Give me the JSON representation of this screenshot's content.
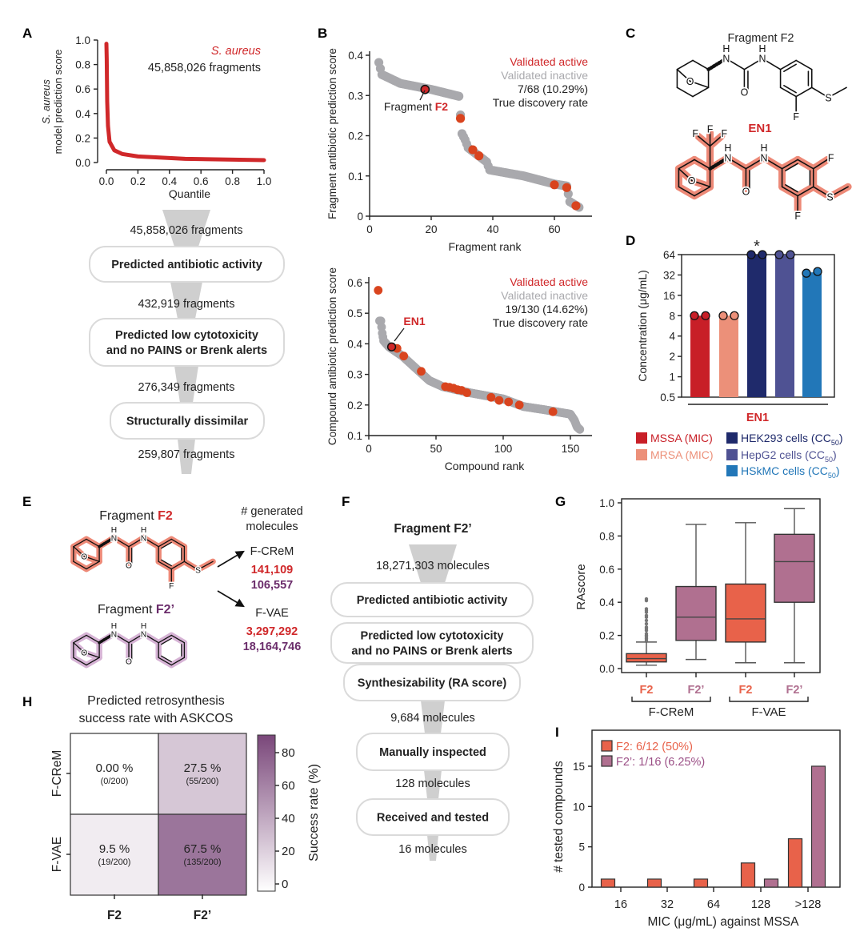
{
  "panel_labels": {
    "A": "A",
    "B": "B",
    "C": "C",
    "D": "D",
    "E": "E",
    "F": "F",
    "G": "G",
    "H": "H",
    "I": "I"
  },
  "panel_a_funnel": {
    "counts": [
      "45,858,026 fragments",
      "432,919 fragments",
      "276,349 fragments",
      "259,807 fragments"
    ],
    "boxes": [
      [
        "Predicted antibiotic activity"
      ],
      [
        "Predicted low cytotoxicity",
        "and no PAINS or Brenk alerts"
      ],
      [
        "Structurally dissimilar"
      ]
    ]
  },
  "panel_c": {
    "title_prefix": "Fragment ",
    "title_highlight": "F2",
    "en1_label": "EN1"
  },
  "panel_e": {
    "f2_prefix": "Fragment ",
    "f2": "F2",
    "f2p": "F2’",
    "header": [
      "# generated",
      "molecules"
    ],
    "methods": [
      {
        "name": "F-CReM",
        "f2_count": "141,109",
        "f2p_count": "106,557"
      },
      {
        "name": "F-VAE",
        "f2_count": "3,297,292",
        "f2p_count": "18,164,746"
      }
    ]
  },
  "panel_f_funnel": {
    "title": "Fragment F2’",
    "counts": [
      "18,271,303 molecules",
      "9,684 molecules",
      "128 molecules",
      "16 molecules"
    ],
    "boxes": [
      [
        "Predicted antibiotic activity"
      ],
      [
        "Predicted low cytotoxicity",
        "and no PAINS or Brenk alerts"
      ],
      [
        "Synthesizability (RA score)"
      ],
      [
        "Manually inspected"
      ],
      [
        "Received and tested"
      ]
    ]
  },
  "molecules": {
    "atoms": {
      "N": "N",
      "H": "H",
      "O": "O",
      "F": "F",
      "S": "S"
    }
  },
  "colors": {
    "red_text": "#d0282a",
    "active": "#d9441e",
    "inactive": "#a9a9ad",
    "f2": "#e8624a",
    "f2p": "#b07090",
    "f2p_text": "#6b2d6b",
    "funnel": "#cfcfcf"
  },
  "chart_data": [
    {
      "id": "A",
      "type": "line",
      "annotation_species": "S. aureus",
      "annotation_count": "45,858,026 fragments",
      "xlabel": "Quantile",
      "ylabel_italic": "S. aureus",
      "ylabel": "model prediction score",
      "xlim": [
        0,
        1
      ],
      "ylim": [
        0,
        1
      ],
      "xtick_labels": [
        "0.0",
        "0.2",
        "0.4",
        "0.6",
        "0.8",
        "1.0"
      ],
      "ytick_labels": [
        "0.0",
        "0.2",
        "0.4",
        "0.6",
        "0.8",
        "1.0"
      ],
      "points": [
        [
          0,
          0.97
        ],
        [
          0.002,
          0.85
        ],
        [
          0.005,
          0.5
        ],
        [
          0.01,
          0.3
        ],
        [
          0.02,
          0.17
        ],
        [
          0.05,
          0.1
        ],
        [
          0.1,
          0.07
        ],
        [
          0.2,
          0.05
        ],
        [
          0.5,
          0.03
        ],
        [
          1,
          0.02
        ]
      ]
    },
    {
      "id": "B-top",
      "type": "scatter",
      "xlabel": "Fragment rank",
      "ylabel": "Fragment antibiotic prediction score",
      "xlim": [
        0,
        72
      ],
      "ylim": [
        0,
        0.4
      ],
      "xtick_labels": [
        "0",
        "20",
        "40",
        "60"
      ],
      "ytick_labels": [
        "0",
        "0.1",
        "0.2",
        "0.3",
        "0.4"
      ],
      "legend": [
        "Validated active",
        "Validated inactive",
        "7/68 (10.29%)",
        "True discovery rate"
      ],
      "inactive_curve": [
        [
          3,
          0.382
        ],
        [
          4,
          0.352
        ],
        [
          10,
          0.33
        ],
        [
          20,
          0.315
        ],
        [
          29,
          0.298
        ],
        [
          30,
          0.205
        ],
        [
          31,
          0.19
        ],
        [
          32,
          0.17
        ],
        [
          38,
          0.135
        ],
        [
          39,
          0.115
        ],
        [
          50,
          0.1
        ],
        [
          60,
          0.08
        ],
        [
          64,
          0.075
        ],
        [
          65,
          0.036
        ],
        [
          68,
          0.022
        ]
      ],
      "active": [
        [
          18,
          0.315
        ],
        [
          29.5,
          0.243
        ],
        [
          33.5,
          0.165
        ],
        [
          35.5,
          0.15
        ],
        [
          60,
          0.078
        ],
        [
          64,
          0.071
        ],
        [
          67,
          0.026
        ]
      ],
      "highlight": {
        "x": 18,
        "y": 0.315,
        "prefix": "Fragment ",
        "label": "F2"
      }
    },
    {
      "id": "B-bottom",
      "type": "scatter",
      "xlabel": "Compound rank",
      "ylabel": "Compound antibiotic prediction score",
      "xlim": [
        0,
        160
      ],
      "ylim": [
        0.1,
        0.6
      ],
      "xtick_labels": [
        "0",
        "50",
        "100",
        "150"
      ],
      "ytick_labels": [
        "0.1",
        "0.2",
        "0.3",
        "0.4",
        "0.5",
        "0.6"
      ],
      "legend": [
        "Validated active",
        "Validated inactive",
        "19/130 (14.62%)",
        "True discovery rate"
      ],
      "inactive_curve": [
        [
          8,
          0.475
        ],
        [
          9,
          0.475
        ],
        [
          10,
          0.435
        ],
        [
          11,
          0.41
        ],
        [
          15,
          0.39
        ],
        [
          25,
          0.36
        ],
        [
          35,
          0.32
        ],
        [
          45,
          0.28
        ],
        [
          55,
          0.26
        ],
        [
          75,
          0.24
        ],
        [
          100,
          0.22
        ],
        [
          115,
          0.195
        ],
        [
          130,
          0.185
        ],
        [
          150,
          0.17
        ],
        [
          153,
          0.15
        ],
        [
          155,
          0.128
        ],
        [
          157,
          0.12
        ]
      ],
      "active": [
        [
          7,
          0.575
        ],
        [
          17,
          0.39
        ],
        [
          21,
          0.385
        ],
        [
          26,
          0.36
        ],
        [
          39,
          0.31
        ],
        [
          57,
          0.26
        ],
        [
          60,
          0.258
        ],
        [
          63,
          0.255
        ],
        [
          66,
          0.25
        ],
        [
          69,
          0.248
        ],
        [
          73,
          0.24
        ],
        [
          91,
          0.225
        ],
        [
          97,
          0.215
        ],
        [
          104,
          0.21
        ],
        [
          112,
          0.2
        ],
        [
          137,
          0.178
        ]
      ],
      "highlight": {
        "x": 17,
        "y": 0.39,
        "prefix": "",
        "label": "EN1"
      }
    },
    {
      "id": "D",
      "type": "bar",
      "yscale": "log2",
      "ylabel": "Concentration (μg/mL)",
      "group_label": "EN1",
      "ytick_labels": [
        "0.5",
        "1",
        "2",
        "4",
        "8",
        "16",
        "32",
        "64"
      ],
      "categories": [
        "MSSA (MIC)",
        "MRSA (MIC)",
        "HEK293 cells (CC50)",
        "HepG2 cells (CC50)",
        "HSkMC cells (CC50)"
      ],
      "values": [
        8,
        8,
        64,
        64,
        35
      ],
      "replicates": [
        [
          8,
          8
        ],
        [
          8,
          8
        ],
        [
          64,
          64
        ],
        [
          64,
          64
        ],
        [
          34,
          36
        ]
      ],
      "significance": [
        "",
        "",
        "*",
        "",
        ""
      ],
      "bar_colors": [
        "#c81f27",
        "#ec9079",
        "#1f2a6b",
        "#4f5293",
        "#2277b8"
      ],
      "legend": [
        {
          "text": "MSSA (MIC)",
          "sub": "",
          "suffix": ""
        },
        {
          "text": "MRSA (MIC)",
          "sub": "",
          "suffix": ""
        },
        {
          "text": "HEK293 cells (CC",
          "sub": "50",
          "suffix": ")"
        },
        {
          "text": "HepG2 cells (CC",
          "sub": "50",
          "suffix": ")"
        },
        {
          "text": "HSkMC cells (CC",
          "sub": "50",
          "suffix": ")"
        }
      ]
    },
    {
      "id": "G",
      "type": "box",
      "ylabel": "RAscore",
      "ylim": [
        0,
        1
      ],
      "ytick_labels": [
        "0.0",
        "0.2",
        "0.4",
        "0.6",
        "0.8",
        "1.0"
      ],
      "groups": [
        "F-CReM",
        "F-VAE"
      ],
      "boxes": [
        {
          "group": "F-CReM",
          "label": "F2",
          "min": 0.02,
          "q1": 0.04,
          "median": 0.06,
          "q3": 0.09,
          "max": 0.16,
          "outliers": [
            0.17,
            0.18,
            0.19,
            0.2,
            0.21,
            0.23,
            0.24,
            0.25,
            0.27,
            0.29,
            0.31,
            0.32,
            0.34,
            0.35,
            0.36,
            0.41,
            0.42
          ]
        },
        {
          "group": "F-CReM",
          "label": "F2’",
          "min": 0.055,
          "q1": 0.17,
          "median": 0.31,
          "q3": 0.495,
          "max": 0.87,
          "outliers": []
        },
        {
          "group": "F-VAE",
          "label": "F2",
          "min": 0.035,
          "q1": 0.16,
          "median": 0.3,
          "q3": 0.51,
          "max": 0.88,
          "outliers": []
        },
        {
          "group": "F-VAE",
          "label": "F2’",
          "min": 0.035,
          "q1": 0.4,
          "median": 0.645,
          "q3": 0.81,
          "max": 0.965,
          "outliers": []
        }
      ]
    },
    {
      "id": "H",
      "type": "heatmap",
      "title": [
        "Predicted retrosynthesis",
        "success rate with ASKCOS"
      ],
      "rows": [
        "F-CReM",
        "F-VAE"
      ],
      "cols": [
        "F2",
        "F2’"
      ],
      "values": [
        [
          0,
          27.5
        ],
        [
          9.5,
          67.5
        ]
      ],
      "labels": [
        [
          "0.00 %",
          "27.5 %"
        ],
        [
          "9.5 %",
          "67.5 %"
        ]
      ],
      "sublabels": [
        [
          "(0/200)",
          "(55/200)"
        ],
        [
          "(19/200)",
          "(135/200)"
        ]
      ],
      "colorbar": {
        "label": "Success rate (%)",
        "ticks": [
          "0",
          "20",
          "40",
          "60",
          "80"
        ],
        "range": [
          0,
          90
        ]
      }
    },
    {
      "id": "I",
      "type": "bar",
      "xlabel": "MIC (μg/mL) against MSSA",
      "ylabel": "# tested compounds",
      "ylim": [
        0,
        19
      ],
      "ytick_labels": [
        "0",
        "5",
        "10",
        "15"
      ],
      "categories": [
        "16",
        "32",
        "64",
        "128",
        ">128"
      ],
      "series": [
        {
          "name": "F2: 6/12 (50%)",
          "values": [
            1,
            1,
            1,
            3,
            6
          ],
          "color": "#e8624a"
        },
        {
          "name": "F2’: 1/16 (6.25%)",
          "values": [
            0,
            0,
            0,
            1,
            15
          ],
          "color": "#b07090"
        }
      ]
    }
  ]
}
